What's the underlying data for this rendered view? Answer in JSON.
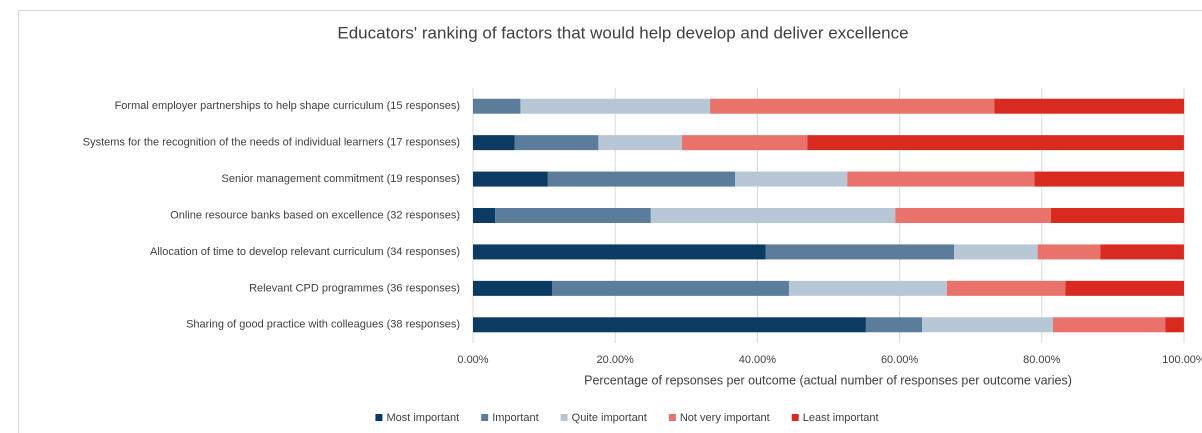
{
  "chart_data": {
    "type": "stacked-bar-horizontal",
    "title": "Educators' ranking of factors that would help develop and deliver excellence",
    "x_label": "Percentage of repsonses per outcome (actual number of responses per outcome varies)",
    "categories": [
      "Formal employer partnerships to help shape curriculum (15 responses)",
      "Systems for the recognition of the needs of individual learners (17 responses)",
      "Senior management commitment (19 responses)",
      "Online resource banks based on excellence  (32 responses)",
      "Allocation of time to develop relevant curriculum (34 responses)",
      "Relevant CPD programmes (36 responses)",
      "Sharing of good practice with colleagues (38 responses)"
    ],
    "series": [
      {
        "name": "Most important",
        "color": "#0b3a63",
        "values": [
          0,
          5.88,
          10.53,
          3.13,
          41.18,
          11.11,
          55.26
        ]
      },
      {
        "name": "Important",
        "color": "#5b7c9b",
        "values": [
          6.67,
          11.76,
          26.32,
          21.88,
          26.47,
          33.33,
          7.89
        ]
      },
      {
        "name": "Quite important",
        "color": "#b8c7d5",
        "values": [
          26.67,
          11.76,
          15.79,
          34.38,
          11.76,
          22.22,
          18.42
        ]
      },
      {
        "name": "Not very important",
        "color": "#e9736b",
        "values": [
          40,
          17.65,
          26.32,
          21.88,
          8.82,
          16.67,
          15.79
        ]
      },
      {
        "name": "Least important",
        "color": "#d92a20",
        "values": [
          26.67,
          52.94,
          21.05,
          18.75,
          11.76,
          16.67,
          2.63
        ]
      }
    ],
    "xlim": [
      0,
      100
    ],
    "xticks": [
      {
        "value": 0,
        "label": "0.00%"
      },
      {
        "value": 20,
        "label": "20.00%"
      },
      {
        "value": 40,
        "label": "40.00%"
      },
      {
        "value": 60,
        "label": "60.00%"
      },
      {
        "value": 80,
        "label": "80.00%"
      },
      {
        "value": 100,
        "label": "100.00%"
      }
    ],
    "grid": true,
    "legend": "bottom"
  }
}
